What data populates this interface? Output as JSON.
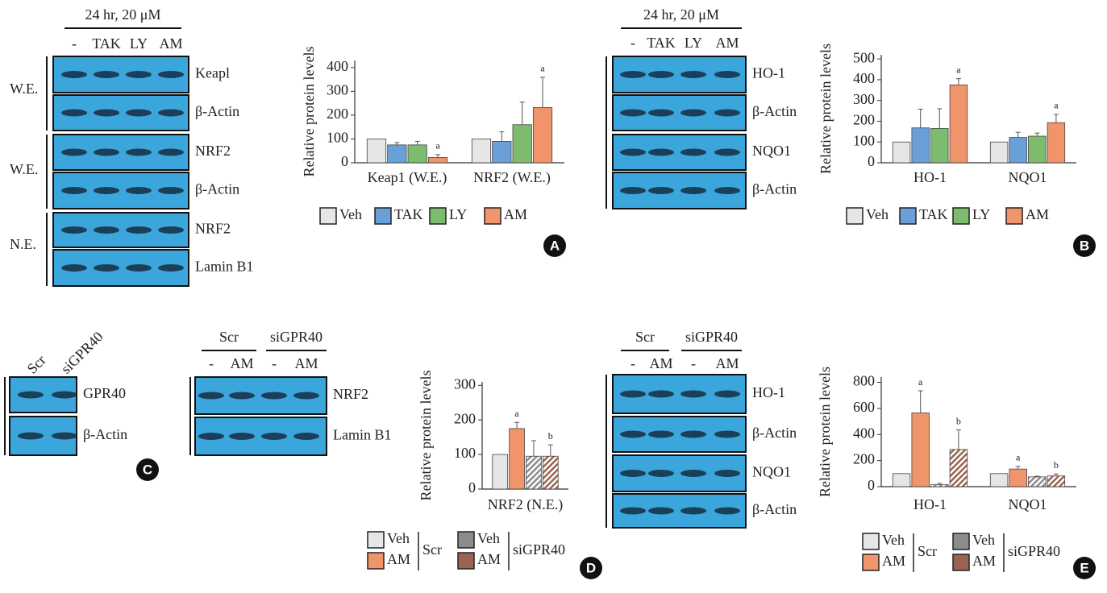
{
  "panels": [
    "A",
    "B",
    "C",
    "D",
    "E"
  ],
  "blot_a": {
    "header": "24 hr, 20 μM",
    "lanes": [
      "-",
      "TAK",
      "LY",
      "AM"
    ],
    "rows": [
      "Keapl",
      "β-Actin",
      "NRF2",
      "β-Actin",
      "NRF2",
      "Lamin B1"
    ],
    "fractions": [
      "W.E.",
      "W.E.",
      "N.E."
    ]
  },
  "blot_b": {
    "header": "24 hr, 20 μM",
    "lanes": [
      "-",
      "TAK",
      "LY",
      "AM"
    ],
    "rows": [
      "HO-1",
      "β-Actin",
      "NQO1",
      "β-Actin"
    ]
  },
  "blot_c1": {
    "lanes": [
      "Scr",
      "siGPR40"
    ],
    "rows": [
      "GPR40",
      "β-Actin"
    ]
  },
  "blot_c2": {
    "groups": [
      "Scr",
      "siGPR40"
    ],
    "lanes": [
      "-",
      "AM",
      "-",
      "AM"
    ],
    "rows": [
      "NRF2",
      "Lamin B1"
    ]
  },
  "blot_e": {
    "groups": [
      "Scr",
      "siGPR40"
    ],
    "lanes": [
      "-",
      "AM",
      "-",
      "AM"
    ],
    "rows": [
      "HO-1",
      "β-Actin",
      "NQO1",
      "β-Actin"
    ]
  },
  "chart_data": [
    {
      "type": "bar",
      "y_label": "Relative protein levels",
      "categories": [
        "Keap1 (W.E.)",
        "NRF2 (W.E.)"
      ],
      "ylim": [
        0,
        430
      ],
      "yticks": [
        0,
        100,
        200,
        300,
        400
      ],
      "series": [
        {
          "name": "Veh",
          "color": "#e6e6e6",
          "values": [
            100,
            100
          ]
        },
        {
          "name": "TAK",
          "color": "#6a9fd8",
          "values": [
            75,
            90
          ],
          "errors": [
            10,
            40
          ]
        },
        {
          "name": "LY",
          "color": "#7dbb6e",
          "values": [
            75,
            160
          ],
          "errors": [
            15,
            95
          ]
        },
        {
          "name": "AM",
          "color": "#f0956a",
          "values": [
            22,
            232
          ],
          "errors": [
            12,
            127
          ],
          "significance": [
            "a",
            "a"
          ]
        }
      ]
    },
    {
      "type": "bar",
      "y_label": "Relative protein levels",
      "categories": [
        "HO-1",
        "NQO1"
      ],
      "ylim": [
        0,
        520
      ],
      "yticks": [
        0,
        100,
        200,
        300,
        400,
        500
      ],
      "series": [
        {
          "name": "Veh",
          "color": "#e6e6e6",
          "values": [
            100,
            100
          ]
        },
        {
          "name": "TAK",
          "color": "#6a9fd8",
          "values": [
            168,
            122
          ],
          "errors": [
            90,
            25
          ]
        },
        {
          "name": "LY",
          "color": "#7dbb6e",
          "values": [
            165,
            128
          ],
          "errors": [
            95,
            15
          ]
        },
        {
          "name": "AM",
          "color": "#f0956a",
          "values": [
            375,
            193
          ],
          "errors": [
            30,
            40
          ],
          "significance": [
            "a",
            "a"
          ]
        }
      ]
    },
    {
      "type": "bar",
      "y_label": "Relative protein levels",
      "categories": [
        "NRF2 (N.E.)"
      ],
      "ylim": [
        0,
        310
      ],
      "yticks": [
        0,
        100,
        200,
        300
      ],
      "groups": [
        "Scr",
        "siGPR40"
      ],
      "series": [
        {
          "name": "Veh",
          "color": "#e6e6e6",
          "values": [
            100
          ]
        },
        {
          "name": "AM",
          "color": "#f0956a",
          "values": [
            175
          ],
          "errors": [
            18
          ],
          "significance": [
            "a"
          ]
        },
        {
          "name": "Veh",
          "color": "#8c8c8c",
          "hatch": true,
          "values": [
            95
          ],
          "errors": [
            45
          ]
        },
        {
          "name": "AM",
          "color": "#9b6450",
          "hatch": true,
          "values": [
            95
          ],
          "errors": [
            33
          ],
          "significance": [
            "b"
          ]
        }
      ]
    },
    {
      "type": "bar",
      "y_label": "Relative protein levels",
      "categories": [
        "HO-1",
        "NQO1"
      ],
      "ylim": [
        0,
        840
      ],
      "yticks": [
        0,
        200,
        400,
        600,
        800
      ],
      "groups": [
        "Scr",
        "siGPR40"
      ],
      "series": [
        {
          "name": "Veh",
          "color": "#e6e6e6",
          "values": [
            100,
            100
          ]
        },
        {
          "name": "AM",
          "color": "#f0956a",
          "values": [
            565,
            135
          ],
          "errors": [
            170,
            20
          ],
          "significance": [
            "a",
            "a"
          ]
        },
        {
          "name": "Veh",
          "color": "#8c8c8c",
          "hatch": true,
          "values": [
            15,
            75
          ],
          "errors": [
            10,
            5
          ]
        },
        {
          "name": "AM",
          "color": "#9b6450",
          "hatch": true,
          "values": [
            285,
            82
          ],
          "errors": [
            150,
            15
          ],
          "significance": [
            "b",
            "b"
          ]
        }
      ]
    }
  ]
}
